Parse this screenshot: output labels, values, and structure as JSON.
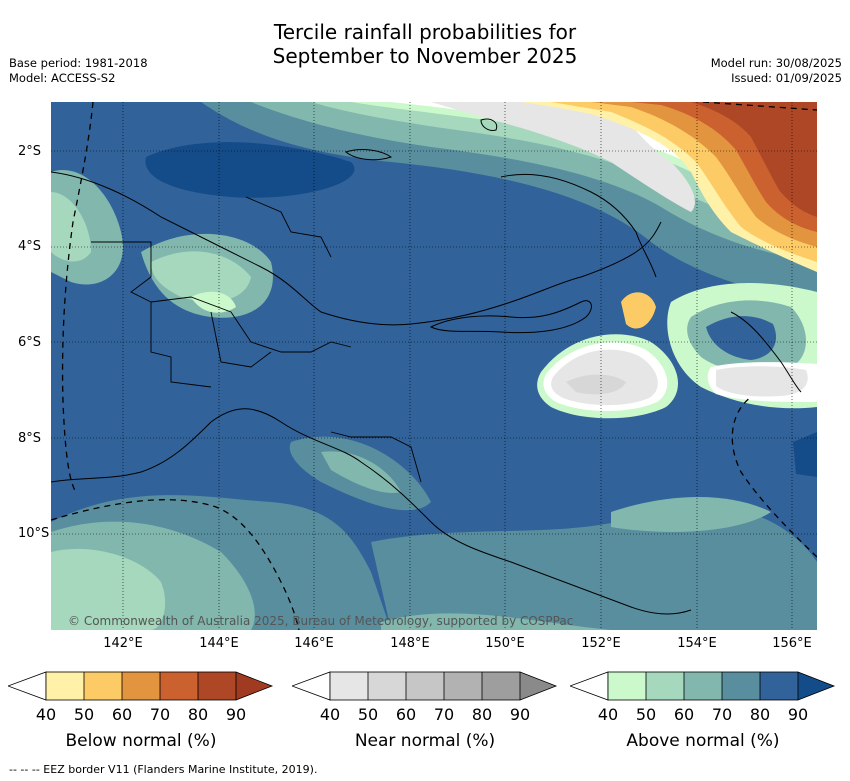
{
  "title_line1": "Tercile rainfall probabilities for",
  "title_line2": "September to November 2025",
  "base_period": "Base period: 1981-2018",
  "model": "Model: ACCESS-S2",
  "model_run": "Model run: 30/08/2025",
  "issued": "Issued: 01/09/2025",
  "copyright": "© Commonwealth of Australia 2025, Bureau of Meteorology, supported by COSPPac",
  "lat_labels": [
    "2°S",
    "4°S",
    "6°S",
    "8°S",
    "10°S"
  ],
  "lon_labels": [
    "142°E",
    "144°E",
    "146°E",
    "148°E",
    "150°E",
    "152°E",
    "154°E",
    "156°E"
  ],
  "colorbars": [
    {
      "title": "Below normal (%)",
      "ticks": [
        "40",
        "50",
        "60",
        "70",
        "80",
        "90"
      ],
      "colors": [
        "#fff1a8",
        "#fdcb66",
        "#e2943f",
        "#cc6130",
        "#ae4726",
        "#a03a20"
      ]
    },
    {
      "title": "Near normal (%)",
      "ticks": [
        "40",
        "50",
        "60",
        "70",
        "80",
        "90"
      ],
      "colors": [
        "#e6e6e6",
        "#d7d7d7",
        "#c6c6c6",
        "#b2b2b2",
        "#9e9e9e",
        "#8a8a8a"
      ]
    },
    {
      "title": "Above normal (%)",
      "ticks": [
        "40",
        "50",
        "60",
        "70",
        "80",
        "90"
      ],
      "colors": [
        "#ccf9cc",
        "#a5d8bd",
        "#82b7ae",
        "#588e9e",
        "#31629a",
        "#134c89"
      ]
    }
  ],
  "footnote": "-- -- -- EEZ border V11 (Flanders Marine Institute, 2019)."
}
